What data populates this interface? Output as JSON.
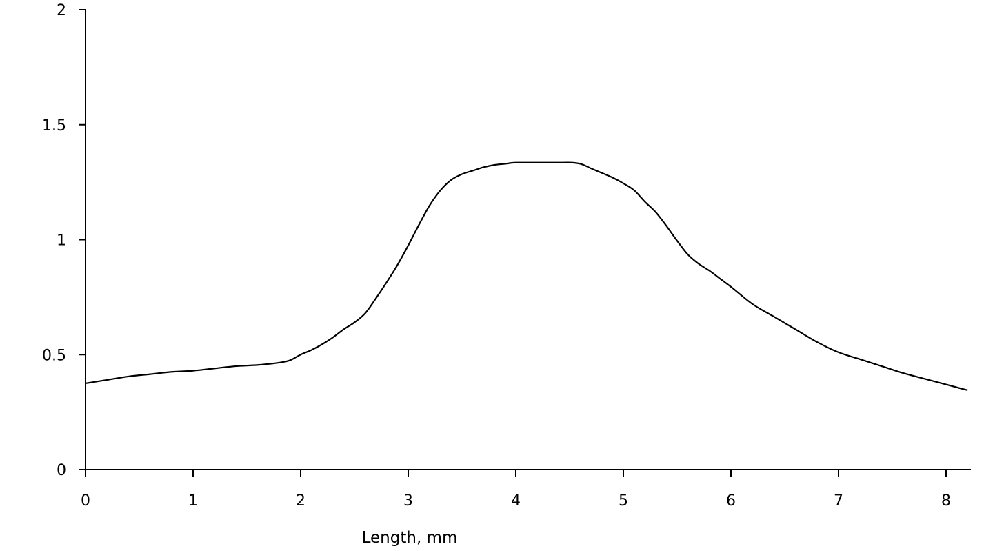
{
  "chart_data": {
    "type": "line",
    "title": "",
    "xlabel": "Length, mm",
    "ylabel": "",
    "xlim": [
      0,
      8.2
    ],
    "ylim": [
      0,
      2
    ],
    "x_ticks": [
      "0",
      "1",
      "2",
      "3",
      "4",
      "5",
      "6",
      "7",
      "8"
    ],
    "y_ticks": [
      "0",
      "0.5",
      "1",
      "1.5",
      "2"
    ],
    "grid": false,
    "legend": "none",
    "line_color": "#000000",
    "series": [
      {
        "x": [
          0,
          0.2,
          0.4,
          0.6,
          0.8,
          1.0,
          1.2,
          1.4,
          1.6,
          1.8,
          1.9,
          2.0,
          2.1,
          2.2,
          2.3,
          2.4,
          2.5,
          2.6,
          2.7,
          2.8,
          2.9,
          3.0,
          3.1,
          3.2,
          3.3,
          3.4,
          3.5,
          3.6,
          3.7,
          3.8,
          3.9,
          4.0,
          4.2,
          4.4,
          4.6,
          4.7,
          4.8,
          4.9,
          5.0,
          5.1,
          5.2,
          5.3,
          5.4,
          5.5,
          5.6,
          5.7,
          5.8,
          5.9,
          6.0,
          6.2,
          6.4,
          6.6,
          6.8,
          7.0,
          7.2,
          7.4,
          7.6,
          7.8,
          8.0,
          8.2
        ],
        "y": [
          0.375,
          0.39,
          0.405,
          0.415,
          0.425,
          0.43,
          0.44,
          0.45,
          0.455,
          0.465,
          0.475,
          0.5,
          0.52,
          0.545,
          0.575,
          0.61,
          0.64,
          0.68,
          0.745,
          0.815,
          0.89,
          0.975,
          1.065,
          1.15,
          1.215,
          1.26,
          1.285,
          1.3,
          1.315,
          1.325,
          1.33,
          1.335,
          1.335,
          1.335,
          1.33,
          1.31,
          1.29,
          1.27,
          1.245,
          1.215,
          1.165,
          1.12,
          1.06,
          0.995,
          0.935,
          0.895,
          0.865,
          0.83,
          0.795,
          0.72,
          0.665,
          0.61,
          0.555,
          0.51,
          0.48,
          0.45,
          0.42,
          0.395,
          0.37,
          0.345
        ]
      }
    ]
  }
}
